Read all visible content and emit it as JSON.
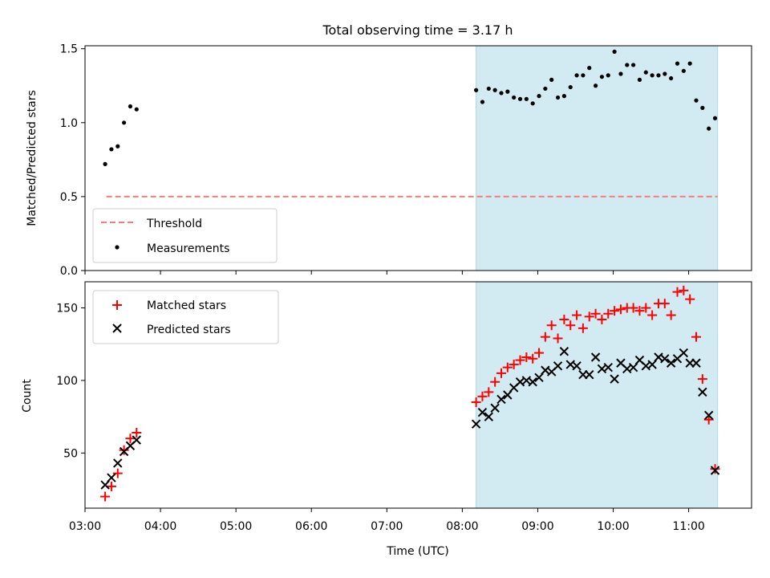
{
  "figure": {
    "title": "Total observing time = 3.17 h"
  },
  "chart_data": [
    {
      "type": "scatter",
      "xlabel": "",
      "ylabel": "Matched/Predicted stars",
      "xlim": [
        "03:00",
        "11:50"
      ],
      "ylim": [
        0,
        1.52
      ],
      "yticks": [
        0.0,
        0.5,
        1.0,
        1.5
      ],
      "ytick_labels": [
        "0.0",
        "0.5",
        "1.0",
        "1.5"
      ],
      "legend_position": "lower-left",
      "shaded_interval": {
        "x_start": "08:11",
        "x_end": "11:23",
        "color": "#add8e6"
      },
      "threshold": {
        "name": "Threshold",
        "value": 0.5,
        "x_start": "03:17",
        "x_end": "11:23",
        "color": "#f08080",
        "style": "dashed"
      },
      "series": [
        {
          "name": "Measurements",
          "color": "#000000",
          "marker": "dot",
          "x": [
            "03:16",
            "03:21",
            "03:26",
            "03:31",
            "03:36",
            "03:41",
            "08:11",
            "08:16",
            "08:21",
            "08:26",
            "08:31",
            "08:36",
            "08:41",
            "08:46",
            "08:51",
            "08:56",
            "09:01",
            "09:06",
            "09:11",
            "09:16",
            "09:21",
            "09:26",
            "09:31",
            "09:36",
            "09:41",
            "09:46",
            "09:51",
            "09:56",
            "10:01",
            "10:06",
            "10:11",
            "10:16",
            "10:21",
            "10:26",
            "10:31",
            "10:36",
            "10:41",
            "10:46",
            "10:51",
            "10:56",
            "11:01",
            "11:06",
            "11:11",
            "11:16",
            "11:21"
          ],
          "y": [
            0.72,
            0.82,
            0.84,
            1.0,
            1.11,
            1.09,
            1.22,
            1.14,
            1.23,
            1.22,
            1.2,
            1.21,
            1.17,
            1.16,
            1.16,
            1.13,
            1.18,
            1.23,
            1.29,
            1.17,
            1.18,
            1.24,
            1.32,
            1.32,
            1.37,
            1.25,
            1.31,
            1.32,
            1.48,
            1.33,
            1.39,
            1.39,
            1.29,
            1.34,
            1.32,
            1.32,
            1.33,
            1.3,
            1.4,
            1.35,
            1.4,
            1.15,
            1.1,
            0.96,
            1.03
          ]
        }
      ]
    },
    {
      "type": "scatter",
      "xlabel": "Time (UTC)",
      "ylabel": "Count",
      "xlim": [
        "03:00",
        "11:50"
      ],
      "ylim": [
        12,
        168
      ],
      "xticks": [
        "03:00",
        "04:00",
        "05:00",
        "06:00",
        "07:00",
        "08:00",
        "09:00",
        "10:00",
        "11:00"
      ],
      "yticks": [
        50,
        100,
        150
      ],
      "ytick_labels": [
        "50",
        "100",
        "150"
      ],
      "legend_position": "upper-left",
      "shaded_interval": {
        "x_start": "08:11",
        "x_end": "11:23",
        "color": "#add8e6"
      },
      "series": [
        {
          "name": "Matched stars",
          "color": "#ff0000",
          "marker": "plus",
          "x": [
            "03:16",
            "03:21",
            "03:26",
            "03:31",
            "03:36",
            "03:41",
            "08:11",
            "08:16",
            "08:21",
            "08:26",
            "08:31",
            "08:36",
            "08:41",
            "08:46",
            "08:51",
            "08:56",
            "09:01",
            "09:06",
            "09:11",
            "09:16",
            "09:21",
            "09:26",
            "09:31",
            "09:36",
            "09:41",
            "09:46",
            "09:51",
            "09:56",
            "10:01",
            "10:06",
            "10:11",
            "10:16",
            "10:21",
            "10:26",
            "10:31",
            "10:36",
            "10:41",
            "10:46",
            "10:51",
            "10:56",
            "11:01",
            "11:06",
            "11:11",
            "11:16",
            "11:21"
          ],
          "y": [
            20,
            27,
            36,
            52,
            60,
            64,
            85,
            89,
            92,
            99,
            105,
            109,
            111,
            114,
            116,
            115,
            119,
            130,
            138,
            129,
            142,
            138,
            145,
            136,
            144,
            146,
            142,
            146,
            148,
            149,
            150,
            150,
            148,
            150,
            145,
            153,
            153,
            145,
            161,
            162,
            156,
            130,
            101,
            73,
            39
          ]
        },
        {
          "name": "Predicted stars",
          "color": "#000000",
          "marker": "x",
          "x": [
            "03:16",
            "03:21",
            "03:26",
            "03:31",
            "03:36",
            "03:41",
            "08:11",
            "08:16",
            "08:21",
            "08:26",
            "08:31",
            "08:36",
            "08:41",
            "08:46",
            "08:51",
            "08:56",
            "09:01",
            "09:06",
            "09:11",
            "09:16",
            "09:21",
            "09:26",
            "09:31",
            "09:36",
            "09:41",
            "09:46",
            "09:51",
            "09:56",
            "10:01",
            "10:06",
            "10:11",
            "10:16",
            "10:21",
            "10:26",
            "10:31",
            "10:36",
            "10:41",
            "10:46",
            "10:51",
            "10:56",
            "11:01",
            "11:06",
            "11:11",
            "11:16",
            "11:21"
          ],
          "y": [
            28,
            33,
            43,
            51,
            55,
            59,
            70,
            78,
            75,
            81,
            87,
            90,
            95,
            99,
            100,
            99,
            102,
            107,
            106,
            110,
            120,
            111,
            110,
            104,
            104,
            116,
            108,
            109,
            101,
            112,
            108,
            109,
            114,
            110,
            111,
            116,
            115,
            112,
            115,
            119,
            112,
            112,
            92,
            76,
            38
          ]
        }
      ]
    }
  ]
}
